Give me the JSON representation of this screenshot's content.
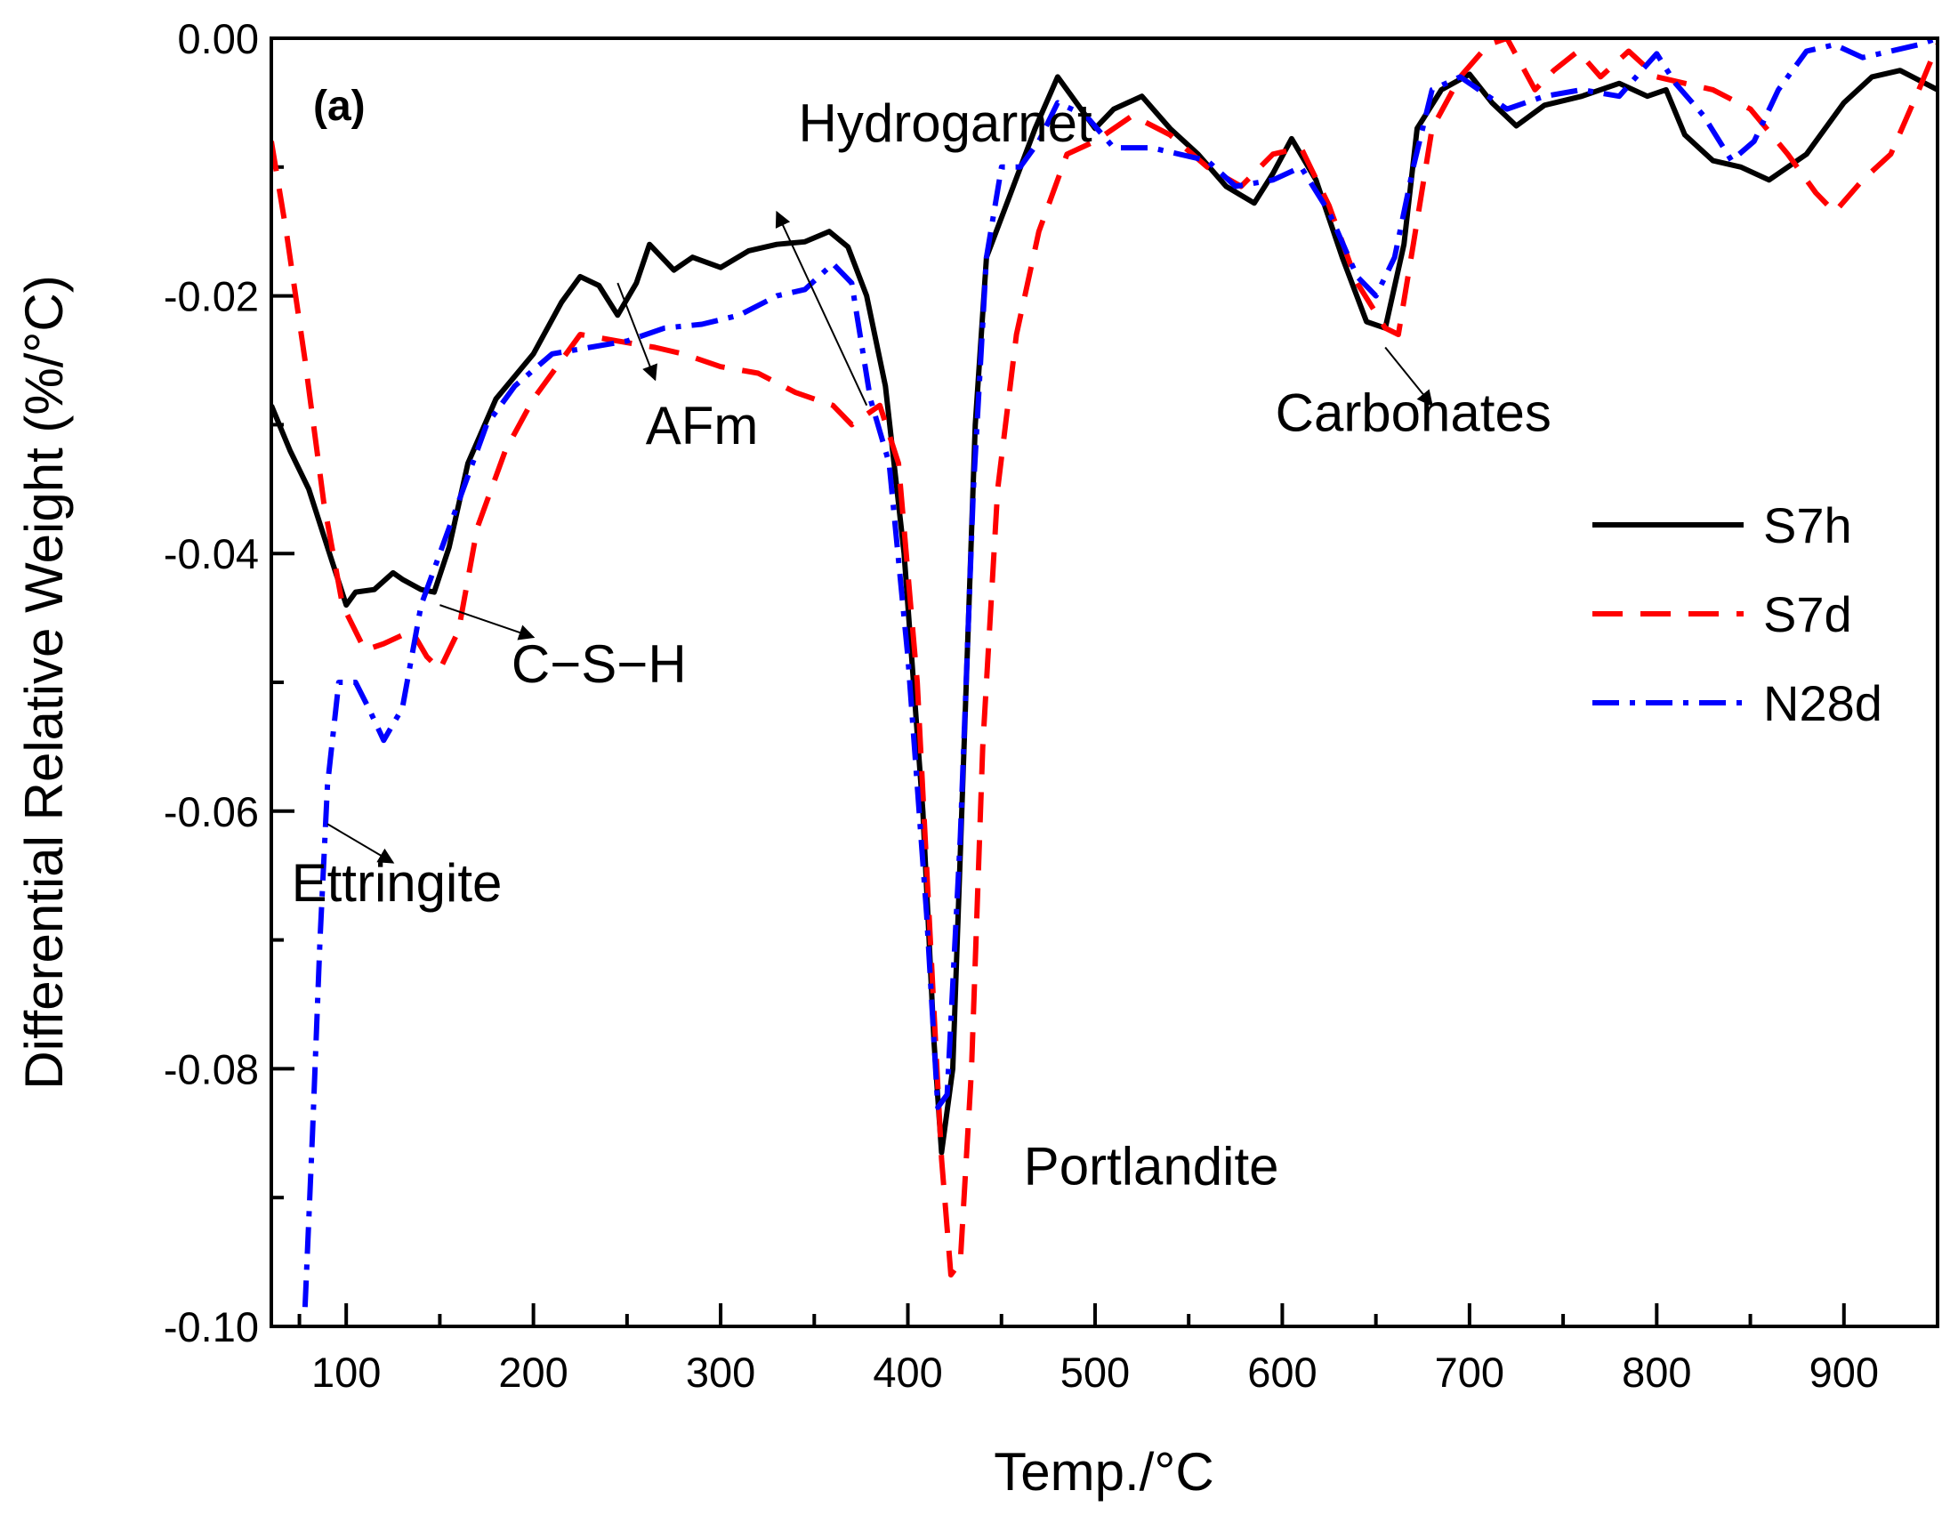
{
  "chart_data": {
    "type": "line",
    "panel_label": "(a)",
    "xlabel": "Temp./°C",
    "ylabel": "Differential Relative Weight (%/°C)",
    "xlim": [
      60,
      950
    ],
    "ylim": [
      -0.1,
      0.0
    ],
    "x_ticks": [
      100,
      200,
      300,
      400,
      500,
      600,
      700,
      800,
      900
    ],
    "x_tick_labels": [
      "100",
      "200",
      "300",
      "400",
      "500",
      "600",
      "700",
      "800",
      "900"
    ],
    "y_ticks": [
      0.0,
      -0.02,
      -0.04,
      -0.06,
      -0.08,
      -0.1
    ],
    "y_tick_labels": [
      "0.00",
      "-0.02",
      "-0.04",
      "-0.06",
      "-0.08",
      "-0.10"
    ],
    "grid": false,
    "legend_position": "right",
    "series": [
      {
        "name": "S7h",
        "color": "#000000",
        "dash": "solid",
        "points": [
          [
            60,
            -0.0285
          ],
          [
            70,
            -0.032
          ],
          [
            80,
            -0.035
          ],
          [
            90,
            -0.0395
          ],
          [
            100,
            -0.044
          ],
          [
            105,
            -0.043
          ],
          [
            115,
            -0.0428
          ],
          [
            125,
            -0.0415
          ],
          [
            130,
            -0.042
          ],
          [
            140,
            -0.0428
          ],
          [
            147,
            -0.043
          ],
          [
            155,
            -0.0395
          ],
          [
            165,
            -0.033
          ],
          [
            180,
            -0.028
          ],
          [
            200,
            -0.0245
          ],
          [
            215,
            -0.0205
          ],
          [
            225,
            -0.0185
          ],
          [
            235,
            -0.0192
          ],
          [
            245,
            -0.0215
          ],
          [
            255,
            -0.019
          ],
          [
            262,
            -0.016
          ],
          [
            275,
            -0.018
          ],
          [
            285,
            -0.017
          ],
          [
            300,
            -0.0178
          ],
          [
            315,
            -0.0165
          ],
          [
            330,
            -0.016
          ],
          [
            345,
            -0.0158
          ],
          [
            358,
            -0.015
          ],
          [
            368,
            -0.0162
          ],
          [
            378,
            -0.02
          ],
          [
            388,
            -0.027
          ],
          [
            398,
            -0.04
          ],
          [
            408,
            -0.06
          ],
          [
            414,
            -0.078
          ],
          [
            418,
            -0.0865
          ],
          [
            424,
            -0.08
          ],
          [
            430,
            -0.055
          ],
          [
            436,
            -0.03
          ],
          [
            442,
            -0.017
          ],
          [
            455,
            -0.012
          ],
          [
            468,
            -0.007
          ],
          [
            480,
            -0.003
          ],
          [
            490,
            -0.005
          ],
          [
            500,
            -0.007
          ],
          [
            510,
            -0.0055
          ],
          [
            525,
            -0.0045
          ],
          [
            540,
            -0.007
          ],
          [
            555,
            -0.009
          ],
          [
            570,
            -0.0115
          ],
          [
            585,
            -0.0128
          ],
          [
            595,
            -0.0105
          ],
          [
            605,
            -0.0078
          ],
          [
            618,
            -0.011
          ],
          [
            632,
            -0.017
          ],
          [
            645,
            -0.022
          ],
          [
            655,
            -0.0225
          ],
          [
            665,
            -0.016
          ],
          [
            672,
            -0.007
          ],
          [
            685,
            -0.004
          ],
          [
            700,
            -0.0028
          ],
          [
            712,
            -0.005
          ],
          [
            725,
            -0.0068
          ],
          [
            740,
            -0.0052
          ],
          [
            760,
            -0.0045
          ],
          [
            780,
            -0.0035
          ],
          [
            795,
            -0.0045
          ],
          [
            805,
            -0.004
          ],
          [
            815,
            -0.0075
          ],
          [
            830,
            -0.0095
          ],
          [
            845,
            -0.01
          ],
          [
            860,
            -0.011
          ],
          [
            880,
            -0.009
          ],
          [
            900,
            -0.005
          ],
          [
            915,
            -0.003
          ],
          [
            930,
            -0.0025
          ],
          [
            950,
            -0.004
          ]
        ]
      },
      {
        "name": "S7d",
        "color": "#ff0000",
        "dash": "dashed",
        "points": [
          [
            60,
            -0.008
          ],
          [
            68,
            -0.015
          ],
          [
            78,
            -0.025
          ],
          [
            88,
            -0.036
          ],
          [
            98,
            -0.044
          ],
          [
            110,
            -0.0475
          ],
          [
            120,
            -0.047
          ],
          [
            135,
            -0.046
          ],
          [
            143,
            -0.048
          ],
          [
            150,
            -0.049
          ],
          [
            160,
            -0.046
          ],
          [
            170,
            -0.038
          ],
          [
            185,
            -0.032
          ],
          [
            200,
            -0.028
          ],
          [
            215,
            -0.025
          ],
          [
            225,
            -0.023
          ],
          [
            245,
            -0.0235
          ],
          [
            265,
            -0.024
          ],
          [
            280,
            -0.0245
          ],
          [
            300,
            -0.0255
          ],
          [
            320,
            -0.026
          ],
          [
            340,
            -0.0275
          ],
          [
            360,
            -0.0285
          ],
          [
            370,
            -0.03
          ],
          [
            385,
            -0.0285
          ],
          [
            395,
            -0.033
          ],
          [
            405,
            -0.05
          ],
          [
            412,
            -0.07
          ],
          [
            418,
            -0.087
          ],
          [
            423,
            -0.096
          ],
          [
            428,
            -0.095
          ],
          [
            434,
            -0.08
          ],
          [
            440,
            -0.055
          ],
          [
            448,
            -0.035
          ],
          [
            458,
            -0.023
          ],
          [
            470,
            -0.015
          ],
          [
            485,
            -0.009
          ],
          [
            500,
            -0.008
          ],
          [
            520,
            -0.006
          ],
          [
            540,
            -0.0075
          ],
          [
            560,
            -0.01
          ],
          [
            578,
            -0.0115
          ],
          [
            595,
            -0.009
          ],
          [
            610,
            -0.0085
          ],
          [
            625,
            -0.013
          ],
          [
            640,
            -0.019
          ],
          [
            655,
            -0.0225
          ],
          [
            662,
            -0.023
          ],
          [
            670,
            -0.016
          ],
          [
            680,
            -0.007
          ],
          [
            695,
            -0.003
          ],
          [
            710,
            -0.0005
          ],
          [
            720,
            0.0
          ],
          [
            735,
            -0.004
          ],
          [
            745,
            -0.0025
          ],
          [
            758,
            -0.001
          ],
          [
            770,
            -0.003
          ],
          [
            785,
            -0.001
          ],
          [
            800,
            -0.003
          ],
          [
            815,
            -0.0035
          ],
          [
            830,
            -0.004
          ],
          [
            850,
            -0.0055
          ],
          [
            870,
            -0.009
          ],
          [
            885,
            -0.012
          ],
          [
            895,
            -0.0135
          ],
          [
            910,
            -0.011
          ],
          [
            925,
            -0.009
          ],
          [
            940,
            -0.004
          ],
          [
            950,
            -0.0005
          ]
        ]
      },
      {
        "name": "N28d",
        "color": "#0000ff",
        "dash": "dashdot",
        "points": [
          [
            78,
            -0.0985
          ],
          [
            82,
            -0.085
          ],
          [
            86,
            -0.07
          ],
          [
            90,
            -0.058
          ],
          [
            96,
            -0.05
          ],
          [
            105,
            -0.05
          ],
          [
            112,
            -0.052
          ],
          [
            120,
            -0.0545
          ],
          [
            130,
            -0.052
          ],
          [
            140,
            -0.044
          ],
          [
            145,
            -0.042
          ],
          [
            160,
            -0.036
          ],
          [
            175,
            -0.03
          ],
          [
            190,
            -0.027
          ],
          [
            210,
            -0.0245
          ],
          [
            230,
            -0.024
          ],
          [
            250,
            -0.0235
          ],
          [
            270,
            -0.0225
          ],
          [
            290,
            -0.0222
          ],
          [
            310,
            -0.0215
          ],
          [
            330,
            -0.02
          ],
          [
            345,
            -0.0195
          ],
          [
            360,
            -0.0175
          ],
          [
            370,
            -0.019
          ],
          [
            380,
            -0.028
          ],
          [
            390,
            -0.033
          ],
          [
            400,
            -0.048
          ],
          [
            410,
            -0.068
          ],
          [
            416,
            -0.083
          ],
          [
            421,
            -0.082
          ],
          [
            428,
            -0.062
          ],
          [
            435,
            -0.035
          ],
          [
            442,
            -0.017
          ],
          [
            450,
            -0.01
          ],
          [
            460,
            -0.01
          ],
          [
            470,
            -0.008
          ],
          [
            480,
            -0.005
          ],
          [
            495,
            -0.006
          ],
          [
            510,
            -0.0085
          ],
          [
            530,
            -0.0085
          ],
          [
            545,
            -0.009
          ],
          [
            560,
            -0.0095
          ],
          [
            575,
            -0.0115
          ],
          [
            595,
            -0.011
          ],
          [
            610,
            -0.01
          ],
          [
            625,
            -0.0135
          ],
          [
            640,
            -0.0185
          ],
          [
            650,
            -0.02
          ],
          [
            660,
            -0.017
          ],
          [
            670,
            -0.01
          ],
          [
            680,
            -0.004
          ],
          [
            695,
            -0.003
          ],
          [
            705,
            -0.004
          ],
          [
            720,
            -0.0055
          ],
          [
            740,
            -0.0045
          ],
          [
            760,
            -0.004
          ],
          [
            780,
            -0.0045
          ],
          [
            792,
            -0.0025
          ],
          [
            800,
            -0.0012
          ],
          [
            810,
            -0.0035
          ],
          [
            825,
            -0.006
          ],
          [
            840,
            -0.0095
          ],
          [
            852,
            -0.008
          ],
          [
            865,
            -0.004
          ],
          [
            880,
            -0.001
          ],
          [
            895,
            -0.0005
          ],
          [
            910,
            -0.0015
          ],
          [
            925,
            -0.001
          ],
          [
            940,
            -0.0005
          ],
          [
            950,
            0.0
          ]
        ]
      }
    ],
    "annotations": [
      {
        "text": "Hydrogarnet",
        "x": 420,
        "y": -0.008,
        "arrow_from": [
          378,
          -0.0285
        ],
        "arrow_to": [
          330,
          -0.0135
        ]
      },
      {
        "text": "AFm",
        "x": 290,
        "y": -0.0315,
        "arrow_from": [
          245,
          -0.019
        ],
        "arrow_to": [
          265,
          -0.0265
        ]
      },
      {
        "text": "C−S−H",
        "x": 235,
        "y": -0.05,
        "arrow_from": [
          150,
          -0.044
        ],
        "arrow_to": [
          200,
          -0.0465
        ]
      },
      {
        "text": "Ettringite",
        "x": 127,
        "y": -0.067,
        "arrow_from": [
          90,
          -0.061
        ],
        "arrow_to": [
          125,
          -0.064
        ]
      },
      {
        "text": "Portlandite",
        "x": 530,
        "y": -0.089,
        "arrow_from": null,
        "arrow_to": null
      },
      {
        "text": "Carbonates",
        "x": 670,
        "y": -0.0305,
        "arrow_from": [
          655,
          -0.024
        ],
        "arrow_to": [
          680,
          -0.0285
        ]
      }
    ]
  }
}
